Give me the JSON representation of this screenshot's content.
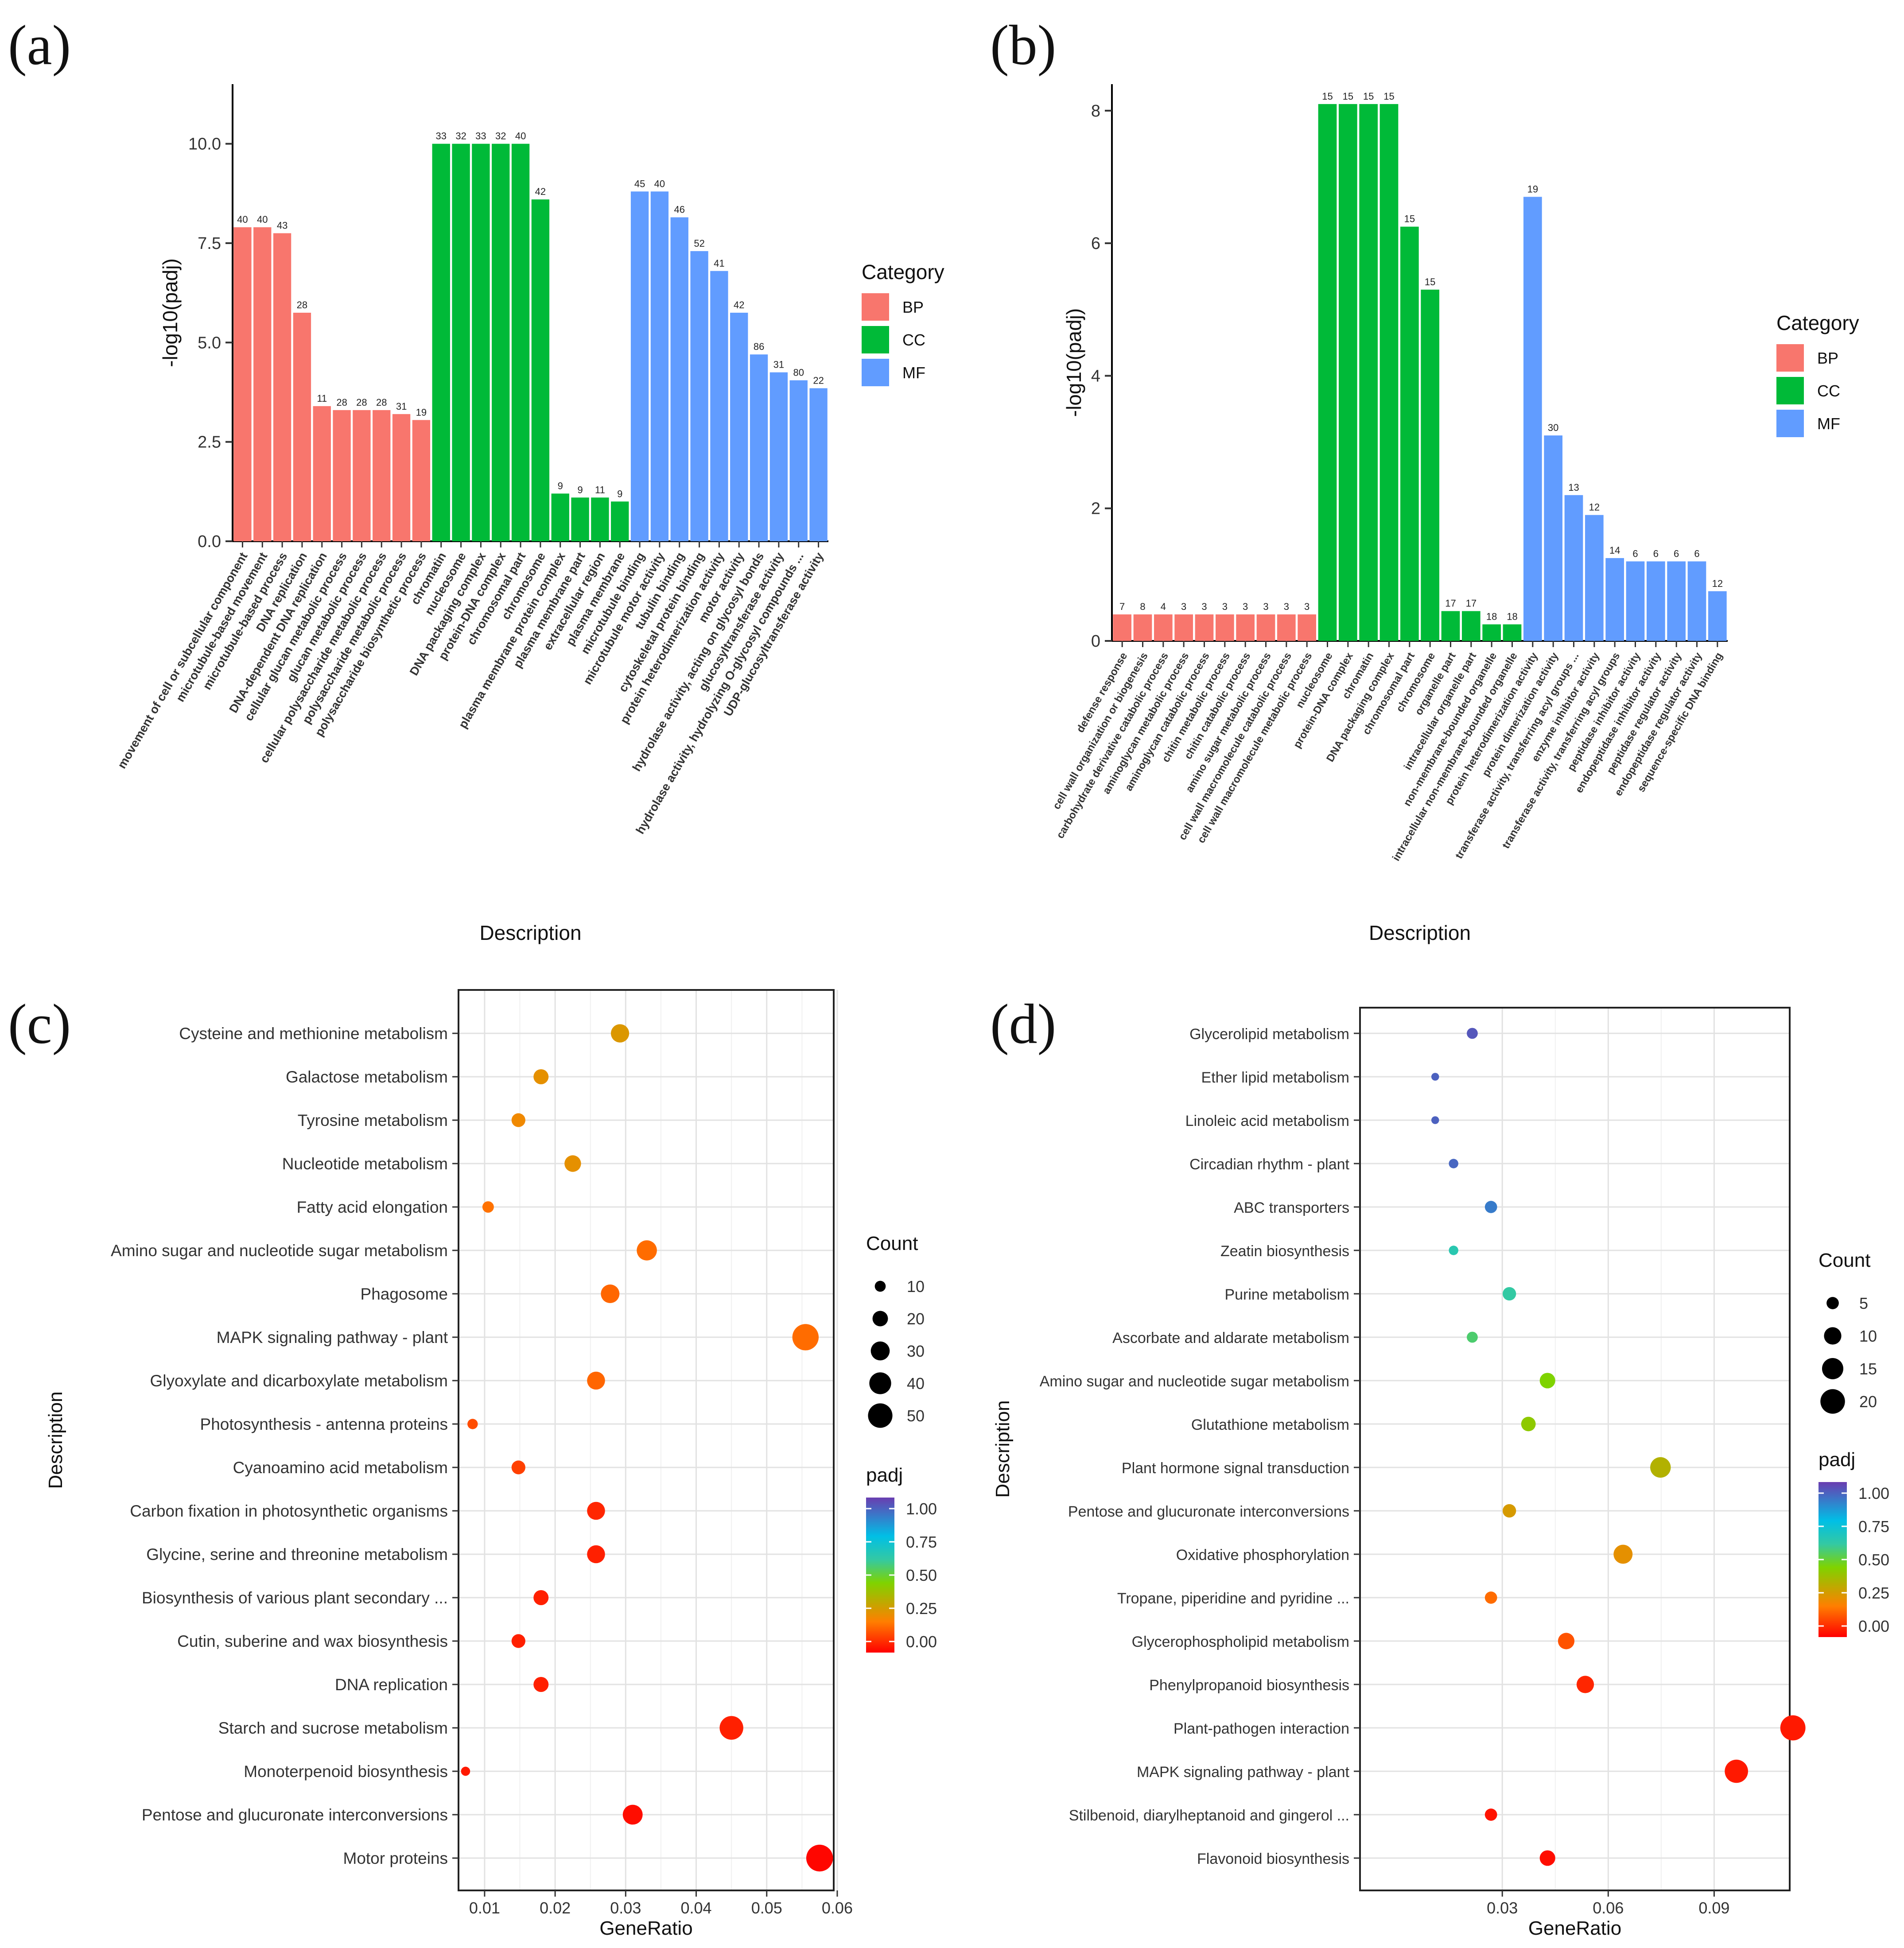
{
  "chart_data": [
    {
      "panel": "(a)",
      "type": "bar",
      "xlabel": "Description",
      "ylabel": "-log10(padj)",
      "ylim": [
        0,
        11.5
      ],
      "yticks": [
        "0.0",
        "2.5",
        "5.0",
        "7.5",
        "10.0"
      ],
      "legend": {
        "title": "Category",
        "position": "right",
        "items": [
          "BP",
          "CC",
          "MF"
        ]
      },
      "colors": {
        "BP": "#F8766D",
        "CC": "#00BA38",
        "MF": "#619CFF"
      },
      "bars": [
        {
          "label": "movement of cell or subcellular component",
          "cat": "BP",
          "value": 7.9,
          "count": "40"
        },
        {
          "label": "microtubule-based movement",
          "cat": "BP",
          "value": 7.9,
          "count": "40"
        },
        {
          "label": "microtubule-based process",
          "cat": "BP",
          "value": 7.75,
          "count": "43"
        },
        {
          "label": "DNA replication",
          "cat": "BP",
          "value": 5.75,
          "count": "28"
        },
        {
          "label": "DNA-dependent DNA replication",
          "cat": "BP",
          "value": 3.4,
          "count": "11"
        },
        {
          "label": "cellular glucan metabolic process",
          "cat": "BP",
          "value": 3.3,
          "count": "28"
        },
        {
          "label": "glucan metabolic process",
          "cat": "BP",
          "value": 3.3,
          "count": "28"
        },
        {
          "label": "cellular polysaccharide metabolic process",
          "cat": "BP",
          "value": 3.3,
          "count": "28"
        },
        {
          "label": "polysaccharide metabolic process",
          "cat": "BP",
          "value": 3.2,
          "count": "31"
        },
        {
          "label": "polysaccharide biosynthetic process",
          "cat": "BP",
          "value": 3.05,
          "count": "19"
        },
        {
          "label": "chromatin",
          "cat": "CC",
          "value": 10.0,
          "count": "33"
        },
        {
          "label": "nucleosome",
          "cat": "CC",
          "value": 10.0,
          "count": "32"
        },
        {
          "label": "DNA packaging complex",
          "cat": "CC",
          "value": 10.0,
          "count": "33"
        },
        {
          "label": "protein-DNA complex",
          "cat": "CC",
          "value": 10.0,
          "count": "32"
        },
        {
          "label": "chromosomal part",
          "cat": "CC",
          "value": 10.0,
          "count": "40"
        },
        {
          "label": "chromosome",
          "cat": "CC",
          "value": 8.6,
          "count": "42"
        },
        {
          "label": "plasma membrane protein complex",
          "cat": "CC",
          "value": 1.2,
          "count": "9"
        },
        {
          "label": "plasma membrane part",
          "cat": "CC",
          "value": 1.1,
          "count": "9"
        },
        {
          "label": "extracellular region",
          "cat": "CC",
          "value": 1.1,
          "count": "11"
        },
        {
          "label": "plasma membrane",
          "cat": "CC",
          "value": 1.0,
          "count": "9"
        },
        {
          "label": "microtubule binding",
          "cat": "MF",
          "value": 8.8,
          "count": "45"
        },
        {
          "label": "microtubule motor activity",
          "cat": "MF",
          "value": 8.8,
          "count": "40"
        },
        {
          "label": "tubulin binding",
          "cat": "MF",
          "value": 8.15,
          "count": "46"
        },
        {
          "label": "cytoskeletal protein binding",
          "cat": "MF",
          "value": 7.3,
          "count": "52"
        },
        {
          "label": "protein heterodimerization activity",
          "cat": "MF",
          "value": 6.8,
          "count": "41"
        },
        {
          "label": "motor activity",
          "cat": "MF",
          "value": 5.75,
          "count": "42"
        },
        {
          "label": "hydrolase activity, acting on glycosyl bonds",
          "cat": "MF",
          "value": 4.7,
          "count": "86"
        },
        {
          "label": "glucosyltransferase activity",
          "cat": "MF",
          "value": 4.25,
          "count": "31"
        },
        {
          "label": "hydrolase activity, hydrolyzing O-glycosyl compounds ...",
          "cat": "MF",
          "value": 4.05,
          "count": "80"
        },
        {
          "label": "UDP-glucosyltransferase activity",
          "cat": "MF",
          "value": 3.85,
          "count": "22"
        }
      ]
    },
    {
      "panel": "(b)",
      "type": "bar",
      "xlabel": "Description",
      "ylabel": "-log10(padj)",
      "ylim": [
        0,
        8.4
      ],
      "yticks": [
        "0",
        "2",
        "4",
        "6",
        "8"
      ],
      "legend": {
        "title": "Category",
        "position": "right",
        "items": [
          "BP",
          "CC",
          "MF"
        ]
      },
      "colors": {
        "BP": "#F8766D",
        "CC": "#00BA38",
        "MF": "#619CFF"
      },
      "bars": [
        {
          "label": "defense response",
          "cat": "BP",
          "value": 0.4,
          "count": "7"
        },
        {
          "label": "cell wall organization or biogenesis",
          "cat": "BP",
          "value": 0.4,
          "count": "8"
        },
        {
          "label": "carbohydrate derivative catabolic process",
          "cat": "BP",
          "value": 0.4,
          "count": "4"
        },
        {
          "label": "aminoglycan metabolic process",
          "cat": "BP",
          "value": 0.4,
          "count": "3"
        },
        {
          "label": "aminoglycan catabolic process",
          "cat": "BP",
          "value": 0.4,
          "count": "3"
        },
        {
          "label": "chitin metabolic process",
          "cat": "BP",
          "value": 0.4,
          "count": "3"
        },
        {
          "label": "chitin catabolic process",
          "cat": "BP",
          "value": 0.4,
          "count": "3"
        },
        {
          "label": "amino sugar metabolic process",
          "cat": "BP",
          "value": 0.4,
          "count": "3"
        },
        {
          "label": "cell wall macromolecule catabolic process",
          "cat": "BP",
          "value": 0.4,
          "count": "3"
        },
        {
          "label": "cell wall macromolecule metabolic process",
          "cat": "BP",
          "value": 0.4,
          "count": "3"
        },
        {
          "label": "nucleosome",
          "cat": "CC",
          "value": 8.1,
          "count": "15"
        },
        {
          "label": "protein-DNA complex",
          "cat": "CC",
          "value": 8.1,
          "count": "15"
        },
        {
          "label": "chromatin",
          "cat": "CC",
          "value": 8.1,
          "count": "15"
        },
        {
          "label": "DNA packaging complex",
          "cat": "CC",
          "value": 8.1,
          "count": "15"
        },
        {
          "label": "chromosomal part",
          "cat": "CC",
          "value": 6.25,
          "count": "15"
        },
        {
          "label": "chromosome",
          "cat": "CC",
          "value": 5.3,
          "count": "15"
        },
        {
          "label": "organelle part",
          "cat": "CC",
          "value": 0.45,
          "count": "17"
        },
        {
          "label": "intracellular organelle part",
          "cat": "CC",
          "value": 0.45,
          "count": "17"
        },
        {
          "label": "non-membrane-bounded organelle",
          "cat": "CC",
          "value": 0.25,
          "count": "18"
        },
        {
          "label": "intracellular non-membrane-bounded organelle",
          "cat": "CC",
          "value": 0.25,
          "count": "18"
        },
        {
          "label": "protein heterodimerization activity",
          "cat": "MF",
          "value": 6.7,
          "count": "19"
        },
        {
          "label": "protein dimerization activity",
          "cat": "MF",
          "value": 3.1,
          "count": "30"
        },
        {
          "label": "transferase activity, transferring acyl groups ...",
          "cat": "MF",
          "value": 2.2,
          "count": "13"
        },
        {
          "label": "enzyme inhibitor activity",
          "cat": "MF",
          "value": 1.9,
          "count": "12"
        },
        {
          "label": "transferase activity, transferring acyl groups",
          "cat": "MF",
          "value": 1.25,
          "count": "14"
        },
        {
          "label": "peptidase inhibitor activity",
          "cat": "MF",
          "value": 1.2,
          "count": "6"
        },
        {
          "label": "endopeptidase inhibitor activity",
          "cat": "MF",
          "value": 1.2,
          "count": "6"
        },
        {
          "label": "peptidase regulator activity",
          "cat": "MF",
          "value": 1.2,
          "count": "6"
        },
        {
          "label": "endopeptidase regulator activity",
          "cat": "MF",
          "value": 1.2,
          "count": "6"
        },
        {
          "label": "sequence-specific DNA binding",
          "cat": "MF",
          "value": 0.75,
          "count": "12"
        }
      ]
    },
    {
      "panel": "(c)",
      "type": "scatter",
      "xlabel": "GeneRatio",
      "ylabel": "Description",
      "xlim": [
        0.0063,
        0.0595
      ],
      "xticks": [
        0.01,
        0.02,
        0.03,
        0.04,
        0.05,
        0.06
      ],
      "xtick_labels": [
        "0.01",
        "0.02",
        "0.03",
        "0.04",
        "0.05",
        "0.06"
      ],
      "size_legend": {
        "title": "Count",
        "values": [
          10,
          20,
          30,
          40,
          50
        ],
        "labels": [
          "10",
          "20",
          "30",
          "40",
          "50"
        ]
      },
      "color_legend": {
        "title": "padj",
        "labels": [
          "1.00",
          "0.75",
          "0.50",
          "0.25",
          "0.00"
        ]
      },
      "points": [
        {
          "term": "Cysteine and methionine metabolism",
          "ratio": 0.0292,
          "count": 28,
          "padj": 0.27
        },
        {
          "term": "Galactose metabolism",
          "ratio": 0.018,
          "count": 19,
          "padj": 0.25
        },
        {
          "term": "Tyrosine metabolism",
          "ratio": 0.0148,
          "count": 16,
          "padj": 0.23
        },
        {
          "term": "Nucleotide metabolism",
          "ratio": 0.0225,
          "count": 23,
          "padj": 0.25
        },
        {
          "term": "Fatty acid elongation",
          "ratio": 0.0105,
          "count": 11,
          "padj": 0.18
        },
        {
          "term": "Amino sugar and nucleotide sugar metabolism",
          "ratio": 0.033,
          "count": 34,
          "padj": 0.17
        },
        {
          "term": "Phagosome",
          "ratio": 0.0278,
          "count": 29,
          "padj": 0.16
        },
        {
          "term": "MAPK signaling pathway - plant",
          "ratio": 0.0555,
          "count": 58,
          "padj": 0.17
        },
        {
          "term": "Glyoxylate and dicarboxylate metabolism",
          "ratio": 0.0258,
          "count": 27,
          "padj": 0.16
        },
        {
          "term": "Photosynthesis - antenna proteins",
          "ratio": 0.0083,
          "count": 9,
          "padj": 0.12
        },
        {
          "term": "Cyanoamino acid metabolism",
          "ratio": 0.0148,
          "count": 16,
          "padj": 0.1
        },
        {
          "term": "Carbon fixation in photosynthetic organisms",
          "ratio": 0.0258,
          "count": 27,
          "padj": 0.06
        },
        {
          "term": "Glycine, serine and threonine metabolism",
          "ratio": 0.0258,
          "count": 27,
          "padj": 0.05
        },
        {
          "term": "Biosynthesis of various plant secondary ...",
          "ratio": 0.018,
          "count": 19,
          "padj": 0.05
        },
        {
          "term": "Cutin, suberine and wax biosynthesis",
          "ratio": 0.0148,
          "count": 16,
          "padj": 0.05
        },
        {
          "term": "DNA replication",
          "ratio": 0.018,
          "count": 19,
          "padj": 0.05
        },
        {
          "term": "Starch and sucrose metabolism",
          "ratio": 0.045,
          "count": 47,
          "padj": 0.05
        },
        {
          "term": "Monoterpenoid biosynthesis",
          "ratio": 0.0073,
          "count": 7,
          "padj": 0.04
        },
        {
          "term": "Pentose and glucuronate interconversions",
          "ratio": 0.031,
          "count": 33,
          "padj": 0.02
        },
        {
          "term": "Motor proteins",
          "ratio": 0.0575,
          "count": 60,
          "padj": 0.01
        }
      ]
    },
    {
      "panel": "(d)",
      "type": "scatter",
      "xlabel": "GeneRatio",
      "ylabel": "Description",
      "xlim": [
        -0.0103,
        0.1114
      ],
      "xticks": [
        0.03,
        0.06,
        0.09
      ],
      "xtick_labels": [
        "0.03",
        "0.06",
        "0.09"
      ],
      "size_legend": {
        "title": "Count",
        "values": [
          5,
          10,
          15,
          20
        ],
        "labels": [
          "5",
          "10",
          "15",
          "20"
        ]
      },
      "color_legend": {
        "title": "padj",
        "labels": [
          "1.00",
          "0.75",
          "0.50",
          "0.25",
          "0.00"
        ]
      },
      "points": [
        {
          "term": "Glycerolipid metabolism",
          "ratio": 0.0215,
          "count": 4,
          "padj": 0.95
        },
        {
          "term": "Ether lipid metabolism",
          "ratio": 0.011,
          "count": 2,
          "padj": 0.93
        },
        {
          "term": "Linoleic acid metabolism",
          "ratio": 0.011,
          "count": 2,
          "padj": 0.93
        },
        {
          "term": "Circadian rhythm - plant",
          "ratio": 0.0162,
          "count": 3,
          "padj": 0.92
        },
        {
          "term": "ABC transporters",
          "ratio": 0.0268,
          "count": 5,
          "padj": 0.88
        },
        {
          "term": "Zeatin biosynthesis",
          "ratio": 0.0162,
          "count": 3,
          "padj": 0.63
        },
        {
          "term": "Purine metabolism",
          "ratio": 0.032,
          "count": 6,
          "padj": 0.6
        },
        {
          "term": "Ascorbate and aldarate metabolism",
          "ratio": 0.0215,
          "count": 4,
          "padj": 0.55
        },
        {
          "term": "Amino sugar and nucleotide sugar metabolism",
          "ratio": 0.0428,
          "count": 8,
          "padj": 0.45
        },
        {
          "term": "Glutathione metabolism",
          "ratio": 0.0374,
          "count": 7,
          "padj": 0.42
        },
        {
          "term": "Plant hormone signal transduction",
          "ratio": 0.0748,
          "count": 14,
          "padj": 0.35
        },
        {
          "term": "Pentose and glucuronate interconversions",
          "ratio": 0.032,
          "count": 6,
          "padj": 0.28
        },
        {
          "term": "Oxidative phosphorylation",
          "ratio": 0.0642,
          "count": 12,
          "padj": 0.25
        },
        {
          "term": "Tropane, piperidine and pyridine ...",
          "ratio": 0.0268,
          "count": 5,
          "padj": 0.17
        },
        {
          "term": "Glycerophospholipid metabolism",
          "ratio": 0.0481,
          "count": 9,
          "padj": 0.13
        },
        {
          "term": "Phenylpropanoid biosynthesis",
          "ratio": 0.0535,
          "count": 10,
          "padj": 0.06
        },
        {
          "term": "Plant-pathogen interaction",
          "ratio": 0.1123,
          "count": 21,
          "padj": 0.04
        },
        {
          "term": "MAPK signaling pathway - plant",
          "ratio": 0.0963,
          "count": 18,
          "padj": 0.04
        },
        {
          "term": "Stilbenoid, diarylheptanoid and gingerol ...",
          "ratio": 0.0268,
          "count": 5,
          "padj": 0.03
        },
        {
          "term": "Flavonoid biosynthesis",
          "ratio": 0.0428,
          "count": 8,
          "padj": 0.02
        }
      ]
    }
  ]
}
